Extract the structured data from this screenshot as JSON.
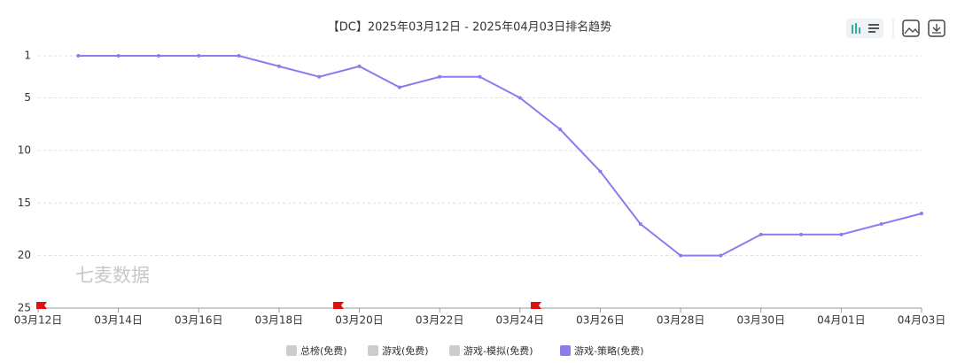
{
  "chart_data": {
    "type": "line",
    "title": "【DC】2025年03月12日 - 2025年04月03日排名趋势",
    "watermark": "七麦数据",
    "categories": [
      "03月12日",
      null,
      "03月14日",
      null,
      "03月16日",
      null,
      "03月18日",
      null,
      "03月20日",
      null,
      "03月22日",
      null,
      "03月24日",
      null,
      "03月26日",
      null,
      "03月28日",
      null,
      "03月30日",
      null,
      "04月01日",
      null,
      "04月03日"
    ],
    "series": [
      {
        "name": "总榜(免费)",
        "color": "#cccccc",
        "hidden": true
      },
      {
        "name": "游戏(免费)",
        "color": "#cccccc",
        "hidden": true
      },
      {
        "name": "游戏-模拟(免费)",
        "color": "#cccccc",
        "hidden": true
      },
      {
        "name": "游戏-策略(免费)",
        "color": "#8b7cf0",
        "values": [
          null,
          1,
          1,
          1,
          1,
          1,
          2,
          3,
          2,
          4,
          3,
          3,
          5,
          8,
          12,
          17,
          20,
          20,
          18,
          18,
          18,
          17,
          16
        ]
      }
    ],
    "ylim": [
      1,
      25
    ],
    "yticks": [
      1,
      5,
      10,
      15,
      20,
      25
    ],
    "y_inverted": true,
    "grid": true
  }
}
